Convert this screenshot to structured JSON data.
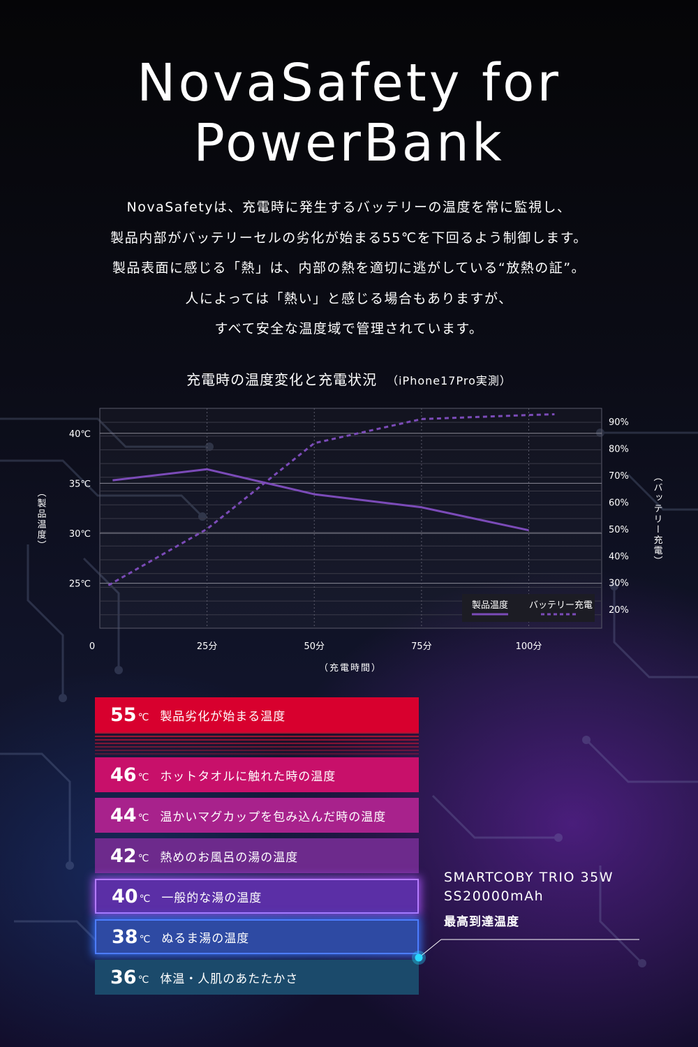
{
  "title_lines": [
    "NovaSafety for",
    "PowerBank"
  ],
  "description_lines": [
    "NovaSafetyは、充電時に発生するバッテリーの温度を常に監視し、",
    "製品内部がバッテリーセルの劣化が始まる55℃を下回るよう制御します。",
    "製品表面に感じる「熱」は、内部の熱を適切に逃がしている“放熱の証”。",
    "人によっては「熱い」と感じる場合もありますが、",
    "すべて安全な温度域で管理されています。"
  ],
  "chart_data": {
    "type": "line",
    "title": "充電時の温度変化と充電状況",
    "subtitle": "（iPhone17Pro実測）",
    "xlabel": "（充電時間）",
    "ylabel_left": "（製品温度）",
    "ylabel_right": "（バッテリー充電）",
    "x_ticks": [
      "0",
      "25分",
      "50分",
      "75分",
      "100分"
    ],
    "y_left_ticks": [
      "40℃",
      "35℃",
      "30℃",
      "25℃"
    ],
    "y_left_tick_values": [
      40,
      35,
      30,
      25
    ],
    "y_right_ticks": [
      "90%",
      "80%",
      "70%",
      "60%",
      "50%",
      "40%",
      "30%",
      "20%"
    ],
    "y_right_tick_values": [
      90,
      80,
      70,
      60,
      50,
      40,
      30,
      20
    ],
    "x_range": [
      0,
      117
    ],
    "y_left_range": [
      20.5,
      42.5
    ],
    "y_right_range": [
      13,
      95
    ],
    "legend_position": "bottom-right",
    "series": [
      {
        "name": "製品温度",
        "axis": "left",
        "style": "solid",
        "color": "#7b4bb8",
        "x": [
          3,
          25,
          50,
          75,
          100
        ],
        "y": [
          35.3,
          36.4,
          33.9,
          32.6,
          30.3
        ]
      },
      {
        "name": "バッテリー充電",
        "axis": "right",
        "style": "dashed",
        "color": "#7b4bb8",
        "x": [
          2,
          25,
          50,
          75,
          100,
          106
        ],
        "y": [
          29,
          50,
          82,
          91,
          92.5,
          92.8
        ]
      }
    ]
  },
  "tiers": [
    {
      "value": "55",
      "unit": "℃",
      "label": "製品劣化が始まる温度",
      "color": "#d8002e"
    },
    {
      "value": "46",
      "unit": "℃",
      "label": "ホットタオルに触れた時の温度",
      "color": "#c8106a"
    },
    {
      "value": "44",
      "unit": "℃",
      "label": "温かいマグカップを包み込んだ時の温度",
      "color": "#a8228c"
    },
    {
      "value": "42",
      "unit": "℃",
      "label": "熱めのお風呂の湯の温度",
      "color": "#6d2a8c"
    },
    {
      "value": "40",
      "unit": "℃",
      "label": "一般的な湯の温度",
      "color": "#5b2fa6"
    },
    {
      "value": "38",
      "unit": "℃",
      "label": "ぬるま湯の温度",
      "color": "#2e4aa3"
    },
    {
      "value": "36",
      "unit": "℃",
      "label": "体温・人肌のあたたかさ",
      "color": "#1b4a6b"
    }
  ],
  "product": {
    "line1": "SMARTCOBY TRIO 35W",
    "line2": "SS20000mAh",
    "line3": "最高到達温度"
  },
  "colors": {
    "accent_cyan": "#29d8ff",
    "grid": "#5a5a6a"
  }
}
